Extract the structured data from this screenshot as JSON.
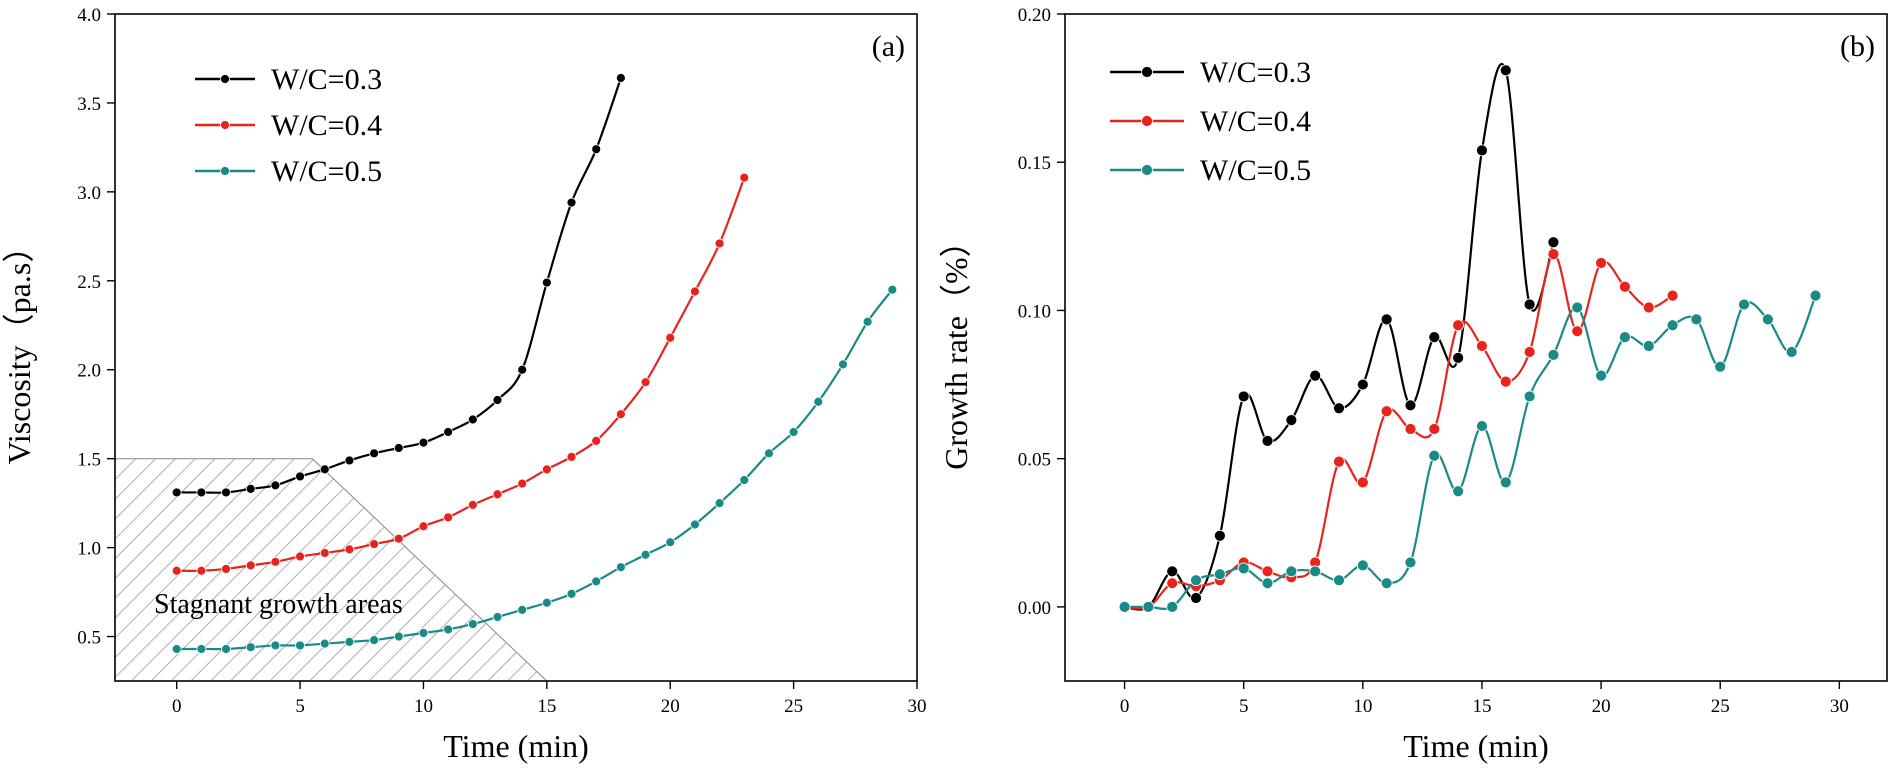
{
  "chart_data": [
    {
      "type": "line",
      "panel_label": "(a)",
      "xlabel": "Time (min)",
      "ylabel": "Viscosity（pa.s）",
      "xlim": [
        -2.5,
        30
      ],
      "ylim": [
        0.25,
        4.0
      ],
      "xticks": [
        0,
        5,
        10,
        15,
        20,
        25,
        30
      ],
      "yticks": [
        0.5,
        1.0,
        1.5,
        2.0,
        2.5,
        3.0,
        3.5,
        4.0
      ],
      "xtick_labels": [
        "0",
        "5",
        "10",
        "15",
        "20",
        "25",
        "30"
      ],
      "ytick_labels": [
        "0.5",
        "1.0",
        "1.5",
        "2.0",
        "2.5",
        "3.0",
        "3.5",
        "4.0"
      ],
      "legend_position": "top-left",
      "annotation": "Stagnant growth areas",
      "series": [
        {
          "name": "W/C=0.3",
          "color": "#000000",
          "x": [
            0,
            1,
            2,
            3,
            4,
            5,
            6,
            7,
            8,
            9,
            10,
            11,
            12,
            13,
            14,
            15,
            16,
            17,
            18
          ],
          "values": [
            1.31,
            1.31,
            1.31,
            1.33,
            1.35,
            1.4,
            1.44,
            1.49,
            1.53,
            1.56,
            1.59,
            1.65,
            1.72,
            1.83,
            2.0,
            2.49,
            2.94,
            3.24,
            3.64
          ]
        },
        {
          "name": "W/C=0.4",
          "color": "#e8231e",
          "x": [
            0,
            1,
            2,
            3,
            4,
            5,
            6,
            7,
            8,
            9,
            10,
            11,
            12,
            13,
            14,
            15,
            16,
            17,
            18,
            19,
            20,
            21,
            22,
            23
          ],
          "values": [
            0.87,
            0.87,
            0.88,
            0.9,
            0.92,
            0.95,
            0.97,
            0.99,
            1.02,
            1.05,
            1.12,
            1.17,
            1.24,
            1.3,
            1.36,
            1.44,
            1.51,
            1.6,
            1.75,
            1.93,
            2.18,
            2.44,
            2.71,
            3.08
          ]
        },
        {
          "name": "W/C=0.5",
          "color": "#1a8a86",
          "x": [
            0,
            1,
            2,
            3,
            4,
            5,
            6,
            7,
            8,
            9,
            10,
            11,
            12,
            13,
            14,
            15,
            16,
            17,
            18,
            19,
            20,
            21,
            22,
            23,
            24,
            25,
            26,
            27,
            28,
            29
          ],
          "values": [
            0.43,
            0.43,
            0.43,
            0.44,
            0.45,
            0.45,
            0.46,
            0.47,
            0.48,
            0.5,
            0.52,
            0.54,
            0.57,
            0.61,
            0.65,
            0.69,
            0.74,
            0.81,
            0.89,
            0.96,
            1.03,
            1.13,
            1.25,
            1.38,
            1.53,
            1.65,
            1.82,
            2.03,
            2.27,
            2.45
          ]
        }
      ]
    },
    {
      "type": "line",
      "panel_label": "(b)",
      "xlabel": "Time (min)",
      "ylabel": "Growth rate（%）",
      "xlim": [
        -2.5,
        32
      ],
      "ylim": [
        -0.025,
        0.2
      ],
      "xticks": [
        0,
        5,
        10,
        15,
        20,
        25,
        30
      ],
      "yticks": [
        0.0,
        0.05,
        0.1,
        0.15,
        0.2
      ],
      "xtick_labels": [
        "0",
        "5",
        "10",
        "15",
        "20",
        "25",
        "30"
      ],
      "ytick_labels": [
        "0.00",
        "0.05",
        "0.10",
        "0.15",
        "0.20"
      ],
      "legend_position": "top-left",
      "series": [
        {
          "name": "W/C=0.3",
          "color": "#000000",
          "x": [
            0,
            1,
            2,
            3,
            4,
            5,
            6,
            7,
            8,
            9,
            10,
            11,
            12,
            13,
            14,
            15,
            16,
            17,
            18
          ],
          "values": [
            0.0,
            0.0,
            0.012,
            0.003,
            0.024,
            0.071,
            0.056,
            0.063,
            0.078,
            0.067,
            0.075,
            0.097,
            0.068,
            0.091,
            0.084,
            0.154,
            0.181,
            0.102,
            0.123
          ]
        },
        {
          "name": "W/C=0.4",
          "color": "#e8231e",
          "x": [
            0,
            1,
            2,
            3,
            4,
            5,
            6,
            7,
            8,
            9,
            10,
            11,
            12,
            13,
            14,
            15,
            16,
            17,
            18,
            19,
            20,
            21,
            22,
            23
          ],
          "values": [
            0.0,
            0.0,
            0.008,
            0.007,
            0.009,
            0.015,
            0.012,
            0.01,
            0.015,
            0.049,
            0.042,
            0.066,
            0.06,
            0.06,
            0.095,
            0.088,
            0.076,
            0.086,
            0.119,
            0.093,
            0.116,
            0.108,
            0.101,
            0.105
          ]
        },
        {
          "name": "W/C=0.5",
          "color": "#1a8a86",
          "x": [
            0,
            1,
            2,
            3,
            4,
            5,
            6,
            7,
            8,
            9,
            10,
            11,
            12,
            13,
            14,
            15,
            16,
            17,
            18,
            19,
            20,
            21,
            22,
            23,
            24,
            25,
            26,
            27,
            28,
            29
          ],
          "values": [
            0.0,
            0.0,
            0.0,
            0.009,
            0.011,
            0.013,
            0.008,
            0.012,
            0.012,
            0.009,
            0.014,
            0.008,
            0.015,
            0.051,
            0.039,
            0.061,
            0.042,
            0.071,
            0.085,
            0.101,
            0.078,
            0.091,
            0.088,
            0.095,
            0.097,
            0.081,
            0.102,
            0.097,
            0.086,
            0.105
          ]
        }
      ]
    }
  ]
}
